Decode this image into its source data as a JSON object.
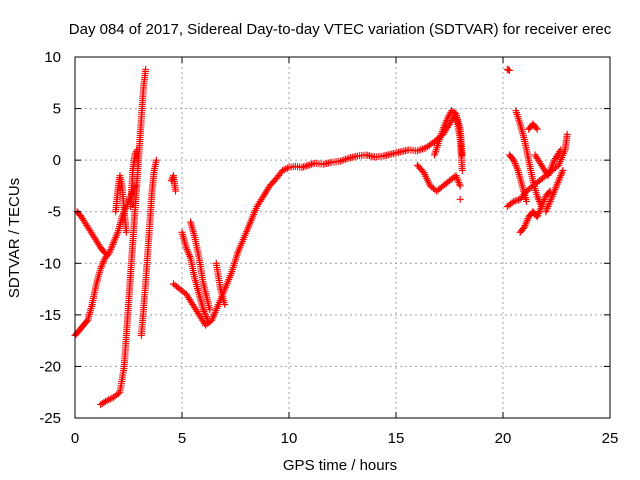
{
  "chart_data": {
    "type": "scatter",
    "title": "Day 084 of 2017, Sidereal Day-to-day VTEC variation (SDTVAR) for receiver erec",
    "xlabel": "GPS time / hours",
    "ylabel": "SDTVAR / TECUs",
    "xlim": [
      0,
      25
    ],
    "ylim": [
      -25,
      10
    ],
    "xticks": [
      "0",
      "5",
      "10",
      "15",
      "20",
      "25"
    ],
    "yticks": [
      "10",
      "5",
      "0",
      "-5",
      "-10",
      "-15",
      "-20",
      "-25"
    ],
    "grid": true,
    "marker": "+",
    "color": "#ff0000",
    "series": [
      {
        "segments": [
          [
            [
              0.0,
              -17.0
            ],
            [
              0.2,
              -16.5
            ],
            [
              0.4,
              -16.0
            ],
            [
              0.6,
              -15.5
            ],
            [
              0.8,
              -14.0
            ],
            [
              1.0,
              -12.0
            ],
            [
              1.2,
              -10.5
            ],
            [
              1.4,
              -9.5
            ],
            [
              1.6,
              -9.0
            ],
            [
              1.8,
              -8.0
            ],
            [
              2.0,
              -7.0
            ],
            [
              2.2,
              -5.5
            ],
            [
              2.4,
              -4.5
            ],
            [
              2.6,
              -3.5
            ],
            [
              2.8,
              -2.5
            ]
          ],
          [
            [
              0.1,
              -5.0
            ],
            [
              0.3,
              -5.5
            ],
            [
              0.6,
              -6.5
            ],
            [
              0.9,
              -7.5
            ],
            [
              1.2,
              -8.5
            ],
            [
              1.4,
              -9.0
            ]
          ],
          [
            [
              1.2,
              -23.7
            ],
            [
              1.5,
              -23.3
            ],
            [
              1.8,
              -23.0
            ],
            [
              2.1,
              -22.5
            ],
            [
              2.3,
              -20.0
            ],
            [
              2.4,
              -17.0
            ],
            [
              2.5,
              -14.0
            ],
            [
              2.6,
              -11.0
            ],
            [
              2.7,
              -8.0
            ],
            [
              2.8,
              -5.0
            ],
            [
              2.9,
              -2.0
            ],
            [
              3.0,
              1.0
            ],
            [
              3.1,
              4.0
            ],
            [
              3.2,
              7.0
            ],
            [
              3.3,
              8.8
            ]
          ],
          [
            [
              1.9,
              -5.0
            ],
            [
              2.0,
              -3.0
            ],
            [
              2.1,
              -1.5
            ],
            [
              2.2,
              -2.5
            ],
            [
              2.3,
              -5.0
            ],
            [
              2.4,
              -7.0
            ]
          ],
          [
            [
              2.6,
              -4.5
            ],
            [
              2.7,
              -1.0
            ],
            [
              2.8,
              0.5
            ],
            [
              2.9,
              1.0
            ]
          ],
          [
            [
              3.1,
              -17.0
            ],
            [
              3.3,
              -12.0
            ],
            [
              3.5,
              -6.0
            ],
            [
              3.6,
              -3.0
            ],
            [
              3.7,
              -1.0
            ],
            [
              3.8,
              0.0
            ]
          ],
          [
            [
              4.5,
              -2.0
            ],
            [
              4.6,
              -1.5
            ],
            [
              4.7,
              -3.0
            ]
          ]
        ]
      },
      {
        "segments": [
          [
            [
              4.6,
              -12.0
            ],
            [
              4.9,
              -12.5
            ],
            [
              5.2,
              -13.0
            ],
            [
              5.5,
              -14.0
            ],
            [
              5.8,
              -15.0
            ],
            [
              6.1,
              -16.0
            ],
            [
              6.4,
              -15.5
            ],
            [
              6.7,
              -14.0
            ],
            [
              7.0,
              -12.5
            ],
            [
              7.3,
              -11.0
            ],
            [
              7.6,
              -9.0
            ],
            [
              7.9,
              -7.5
            ],
            [
              8.2,
              -6.0
            ],
            [
              8.5,
              -4.5
            ],
            [
              8.8,
              -3.5
            ],
            [
              9.1,
              -2.5
            ],
            [
              9.4,
              -1.8
            ],
            [
              9.7,
              -1.0
            ],
            [
              10.0,
              -0.7
            ],
            [
              10.3,
              -0.6
            ],
            [
              10.6,
              -0.7
            ],
            [
              10.9,
              -0.5
            ],
            [
              11.2,
              -0.3
            ],
            [
              11.6,
              -0.4
            ],
            [
              12.0,
              -0.2
            ],
            [
              12.4,
              -0.1
            ],
            [
              12.8,
              0.2
            ],
            [
              13.2,
              0.4
            ],
            [
              13.6,
              0.5
            ],
            [
              14.0,
              0.3
            ],
            [
              14.4,
              0.4
            ],
            [
              14.8,
              0.6
            ],
            [
              15.2,
              0.8
            ],
            [
              15.6,
              1.0
            ],
            [
              16.0,
              0.9
            ],
            [
              16.4,
              1.2
            ],
            [
              16.8,
              1.8
            ],
            [
              17.2,
              2.5
            ],
            [
              17.5,
              3.5
            ],
            [
              17.8,
              4.5
            ],
            [
              18.0,
              3.0
            ],
            [
              18.1,
              0.5
            ]
          ],
          [
            [
              5.0,
              -7.0
            ],
            [
              5.2,
              -8.5
            ],
            [
              5.4,
              -9.5
            ],
            [
              5.6,
              -11.5
            ],
            [
              5.8,
              -13.0
            ],
            [
              6.0,
              -14.5
            ],
            [
              6.2,
              -15.5
            ]
          ],
          [
            [
              5.4,
              -6.0
            ],
            [
              5.6,
              -7.5
            ],
            [
              5.8,
              -9.5
            ],
            [
              6.0,
              -12.0
            ],
            [
              6.3,
              -14.5
            ]
          ],
          [
            [
              6.6,
              -10.0
            ],
            [
              6.8,
              -12.5
            ],
            [
              7.0,
              -14.0
            ]
          ],
          [
            [
              16.0,
              -0.5
            ],
            [
              16.3,
              -1.2
            ],
            [
              16.6,
              -2.5
            ],
            [
              16.9,
              -3.0
            ],
            [
              17.2,
              -2.5
            ],
            [
              17.5,
              -2.0
            ],
            [
              17.8,
              -1.5
            ],
            [
              18.0,
              -2.5
            ]
          ],
          [
            [
              16.8,
              0.5
            ],
            [
              17.0,
              1.8
            ],
            [
              17.2,
              3.0
            ],
            [
              17.4,
              4.0
            ],
            [
              17.6,
              4.8
            ],
            [
              17.8,
              4.5
            ],
            [
              18.0,
              2.0
            ],
            [
              18.1,
              -1.0
            ]
          ],
          [
            [
              18.0,
              -3.8
            ]
          ]
        ]
      },
      {
        "segments": [
          [
            [
              20.2,
              8.8
            ],
            [
              20.3,
              8.7
            ]
          ],
          [
            [
              20.2,
              -4.5
            ],
            [
              20.5,
              -4.0
            ],
            [
              20.8,
              -3.8
            ],
            [
              21.1,
              -3.0
            ],
            [
              21.4,
              -2.5
            ],
            [
              21.7,
              -2.0
            ],
            [
              22.0,
              -1.5
            ],
            [
              22.3,
              -1.0
            ],
            [
              22.6,
              -0.5
            ],
            [
              22.9,
              1.0
            ],
            [
              23.0,
              2.5
            ]
          ],
          [
            [
              20.6,
              4.8
            ],
            [
              20.8,
              3.5
            ],
            [
              21.0,
              2.0
            ],
            [
              21.2,
              0.0
            ],
            [
              21.4,
              -2.0
            ],
            [
              21.6,
              -3.5
            ],
            [
              21.8,
              -4.5
            ]
          ],
          [
            [
              20.8,
              -7.0
            ],
            [
              21.0,
              -6.5
            ],
            [
              21.2,
              -5.5
            ],
            [
              21.4,
              -5.0
            ],
            [
              21.6,
              -5.5
            ],
            [
              21.8,
              -4.5
            ],
            [
              22.0,
              -3.5
            ],
            [
              22.2,
              -3.0
            ]
          ],
          [
            [
              21.2,
              3.0
            ],
            [
              21.4,
              3.5
            ],
            [
              21.6,
              3.0
            ]
          ],
          [
            [
              20.3,
              0.5
            ],
            [
              20.5,
              0.0
            ],
            [
              20.7,
              -1.0
            ],
            [
              20.9,
              -2.5
            ],
            [
              21.1,
              -4.0
            ]
          ],
          [
            [
              22.0,
              -5.0
            ],
            [
              22.2,
              -4.0
            ],
            [
              22.4,
              -3.0
            ],
            [
              22.6,
              -2.0
            ],
            [
              22.8,
              -1.0
            ]
          ],
          [
            [
              21.5,
              0.5
            ],
            [
              21.8,
              -0.5
            ],
            [
              22.1,
              -1.5
            ],
            [
              22.4,
              0.0
            ],
            [
              22.7,
              1.0
            ]
          ]
        ]
      }
    ]
  }
}
